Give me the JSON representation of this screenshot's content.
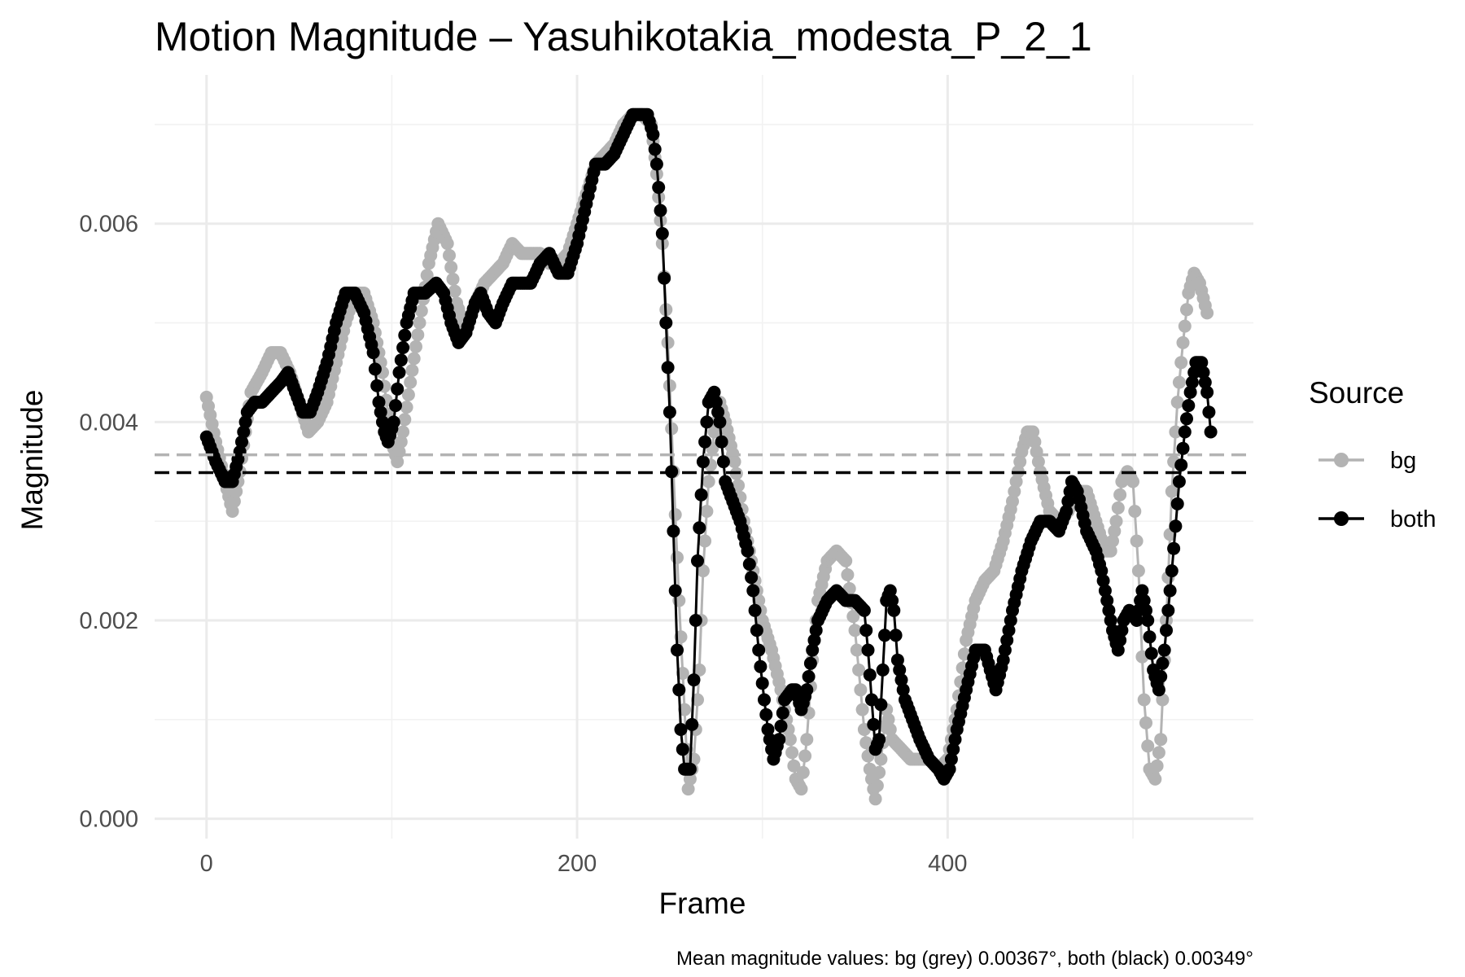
{
  "chart_data": {
    "type": "line",
    "title": "Motion Magnitude – Yasuhikotakia_modesta_P_2_1",
    "xlabel": "Frame",
    "ylabel": "Magnitude",
    "xlim": [
      -28,
      565
    ],
    "ylim": [
      -0.0002,
      0.0075
    ],
    "x_ticks": [
      0,
      200,
      400
    ],
    "x_tick_labels": [
      "0",
      "200",
      "400"
    ],
    "y_ticks": [
      0,
      0.002,
      0.004,
      0.006
    ],
    "y_tick_labels": [
      "0.000",
      "0.002",
      "0.004",
      "0.006"
    ],
    "grid": true,
    "legend_title": "Source",
    "legend_position": "right",
    "caption": "Mean magnitude values: bg (grey) 0.00367°, both (black) 0.00349°",
    "series": [
      {
        "name": "bg",
        "color": "#b3b3b3",
        "mean": 0.00367,
        "points": [
          [
            0,
            0.00425
          ],
          [
            5,
            0.0038
          ],
          [
            10,
            0.0034
          ],
          [
            14,
            0.0031
          ],
          [
            18,
            0.0035
          ],
          [
            24,
            0.0043
          ],
          [
            30,
            0.0045
          ],
          [
            35,
            0.0047
          ],
          [
            40,
            0.0047
          ],
          [
            45,
            0.0045
          ],
          [
            50,
            0.0042
          ],
          [
            55,
            0.0039
          ],
          [
            60,
            0.004
          ],
          [
            65,
            0.0042
          ],
          [
            70,
            0.0046
          ],
          [
            75,
            0.005
          ],
          [
            80,
            0.0053
          ],
          [
            85,
            0.0053
          ],
          [
            90,
            0.005
          ],
          [
            95,
            0.0045
          ],
          [
            100,
            0.0038
          ],
          [
            103,
            0.0036
          ],
          [
            106,
            0.0039
          ],
          [
            110,
            0.0044
          ],
          [
            115,
            0.005
          ],
          [
            120,
            0.0056
          ],
          [
            125,
            0.006
          ],
          [
            130,
            0.0058
          ],
          [
            135,
            0.0052
          ],
          [
            140,
            0.0049
          ],
          [
            145,
            0.0052
          ],
          [
            150,
            0.0054
          ],
          [
            155,
            0.0055
          ],
          [
            160,
            0.0056
          ],
          [
            165,
            0.0058
          ],
          [
            170,
            0.0057
          ],
          [
            175,
            0.0057
          ],
          [
            180,
            0.0057
          ],
          [
            185,
            0.0056
          ],
          [
            190,
            0.0056
          ],
          [
            195,
            0.0057
          ],
          [
            200,
            0.006
          ],
          [
            205,
            0.0063
          ],
          [
            210,
            0.0066
          ],
          [
            215,
            0.0067
          ],
          [
            220,
            0.0068
          ],
          [
            225,
            0.007
          ],
          [
            230,
            0.0071
          ],
          [
            235,
            0.0071
          ],
          [
            240,
            0.007
          ],
          [
            243,
            0.0065
          ],
          [
            246,
            0.0058
          ],
          [
            249,
            0.0048
          ],
          [
            252,
            0.0035
          ],
          [
            255,
            0.0022
          ],
          [
            258,
            0.0011
          ],
          [
            260,
            0.0003
          ],
          [
            263,
            0.0006
          ],
          [
            266,
            0.0015
          ],
          [
            268,
            0.0025
          ],
          [
            271,
            0.0034
          ],
          [
            274,
            0.0039
          ],
          [
            277,
            0.0042
          ],
          [
            280,
            0.004
          ],
          [
            285,
            0.0036
          ],
          [
            290,
            0.003
          ],
          [
            295,
            0.0025
          ],
          [
            300,
            0.002
          ],
          [
            305,
            0.0017
          ],
          [
            310,
            0.0013
          ],
          [
            315,
            0.0008
          ],
          [
            318,
            0.0004
          ],
          [
            321,
            0.0003
          ],
          [
            324,
            0.0008
          ],
          [
            327,
            0.0016
          ],
          [
            330,
            0.0022
          ],
          [
            335,
            0.0026
          ],
          [
            340,
            0.0027
          ],
          [
            345,
            0.0026
          ],
          [
            350,
            0.0019
          ],
          [
            355,
            0.0009
          ],
          [
            358,
            0.0005
          ],
          [
            361,
            0.0002
          ],
          [
            364,
            0.0006
          ],
          [
            367,
            0.0011
          ],
          [
            370,
            0.0008
          ],
          [
            375,
            0.0007
          ],
          [
            380,
            0.0006
          ],
          [
            385,
            0.0006
          ],
          [
            390,
            0.0006
          ],
          [
            395,
            0.0005
          ],
          [
            400,
            0.0006
          ],
          [
            405,
            0.0011
          ],
          [
            410,
            0.0018
          ],
          [
            415,
            0.0022
          ],
          [
            420,
            0.0024
          ],
          [
            425,
            0.0025
          ],
          [
            430,
            0.0028
          ],
          [
            435,
            0.0032
          ],
          [
            440,
            0.0037
          ],
          [
            443,
            0.0039
          ],
          [
            446,
            0.0039
          ],
          [
            450,
            0.0035
          ],
          [
            455,
            0.0031
          ],
          [
            460,
            0.003
          ],
          [
            465,
            0.0031
          ],
          [
            470,
            0.0033
          ],
          [
            475,
            0.0033
          ],
          [
            480,
            0.003
          ],
          [
            485,
            0.0027
          ],
          [
            488,
            0.0027
          ],
          [
            491,
            0.003
          ],
          [
            494,
            0.0034
          ],
          [
            497,
            0.0035
          ],
          [
            500,
            0.0034
          ],
          [
            503,
            0.0025
          ],
          [
            506,
            0.0012
          ],
          [
            509,
            0.0005
          ],
          [
            512,
            0.0004
          ],
          [
            515,
            0.0008
          ],
          [
            518,
            0.002
          ],
          [
            521,
            0.0033
          ],
          [
            524,
            0.0042
          ],
          [
            527,
            0.0048
          ],
          [
            530,
            0.0053
          ],
          [
            533,
            0.0055
          ],
          [
            536,
            0.0054
          ],
          [
            540,
            0.0051
          ]
        ]
      },
      {
        "name": "both",
        "color": "#000000",
        "mean": 0.00349,
        "points": [
          [
            0,
            0.00385
          ],
          [
            5,
            0.0036
          ],
          [
            10,
            0.0034
          ],
          [
            14,
            0.0034
          ],
          [
            18,
            0.0037
          ],
          [
            22,
            0.0041
          ],
          [
            26,
            0.0042
          ],
          [
            30,
            0.0042
          ],
          [
            35,
            0.0043
          ],
          [
            40,
            0.0044
          ],
          [
            44,
            0.0045
          ],
          [
            48,
            0.0043
          ],
          [
            52,
            0.0041
          ],
          [
            56,
            0.0041
          ],
          [
            60,
            0.0043
          ],
          [
            65,
            0.0046
          ],
          [
            70,
            0.005
          ],
          [
            75,
            0.0053
          ],
          [
            80,
            0.0053
          ],
          [
            85,
            0.0051
          ],
          [
            90,
            0.0047
          ],
          [
            93,
            0.0042
          ],
          [
            96,
            0.0039
          ],
          [
            98,
            0.0038
          ],
          [
            101,
            0.004
          ],
          [
            104,
            0.0045
          ],
          [
            108,
            0.005
          ],
          [
            112,
            0.0053
          ],
          [
            118,
            0.0053
          ],
          [
            124,
            0.0054
          ],
          [
            128,
            0.0053
          ],
          [
            132,
            0.005
          ],
          [
            136,
            0.0048
          ],
          [
            140,
            0.0049
          ],
          [
            145,
            0.0052
          ],
          [
            148,
            0.0053
          ],
          [
            152,
            0.0051
          ],
          [
            156,
            0.005
          ],
          [
            160,
            0.0052
          ],
          [
            165,
            0.0054
          ],
          [
            170,
            0.0054
          ],
          [
            175,
            0.0054
          ],
          [
            180,
            0.0056
          ],
          [
            185,
            0.0057
          ],
          [
            190,
            0.0055
          ],
          [
            195,
            0.0055
          ],
          [
            200,
            0.0058
          ],
          [
            205,
            0.0062
          ],
          [
            210,
            0.0066
          ],
          [
            215,
            0.0066
          ],
          [
            220,
            0.0067
          ],
          [
            225,
            0.0069
          ],
          [
            230,
            0.0071
          ],
          [
            235,
            0.0071
          ],
          [
            238,
            0.0071
          ],
          [
            241,
            0.0069
          ],
          [
            243,
            0.0066
          ],
          [
            246,
            0.0059
          ],
          [
            248,
            0.005
          ],
          [
            250,
            0.0041
          ],
          [
            252,
            0.0029
          ],
          [
            254,
            0.0017
          ],
          [
            256,
            0.0009
          ],
          [
            258,
            0.0005
          ],
          [
            261,
            0.0005
          ],
          [
            263,
            0.0014
          ],
          [
            265,
            0.0026
          ],
          [
            268,
            0.0036
          ],
          [
            271,
            0.0042
          ],
          [
            274,
            0.0043
          ],
          [
            277,
            0.004
          ],
          [
            280,
            0.0034
          ],
          [
            284,
            0.0032
          ],
          [
            288,
            0.003
          ],
          [
            292,
            0.0027
          ],
          [
            295,
            0.0023
          ],
          [
            298,
            0.0017
          ],
          [
            301,
            0.0012
          ],
          [
            303,
            0.0009
          ],
          [
            306,
            0.0006
          ],
          [
            309,
            0.0008
          ],
          [
            312,
            0.0012
          ],
          [
            316,
            0.0013
          ],
          [
            318,
            0.0013
          ],
          [
            321,
            0.0011
          ],
          [
            324,
            0.0013
          ],
          [
            327,
            0.0017
          ],
          [
            330,
            0.002
          ],
          [
            335,
            0.0022
          ],
          [
            340,
            0.0023
          ],
          [
            345,
            0.0022
          ],
          [
            350,
            0.0022
          ],
          [
            355,
            0.0021
          ],
          [
            357,
            0.0017
          ],
          [
            359,
            0.0012
          ],
          [
            361,
            0.0007
          ],
          [
            363,
            0.0008
          ],
          [
            365,
            0.0015
          ],
          [
            367,
            0.0022
          ],
          [
            369,
            0.0023
          ],
          [
            371,
            0.0021
          ],
          [
            373,
            0.0016
          ],
          [
            377,
            0.0012
          ],
          [
            381,
            0.001
          ],
          [
            385,
            0.0008
          ],
          [
            390,
            0.0006
          ],
          [
            395,
            0.0005
          ],
          [
            398,
            0.0004
          ],
          [
            401,
            0.0005
          ],
          [
            405,
            0.0009
          ],
          [
            410,
            0.0013
          ],
          [
            415,
            0.0017
          ],
          [
            420,
            0.0017
          ],
          [
            423,
            0.0015
          ],
          [
            426,
            0.0013
          ],
          [
            430,
            0.0016
          ],
          [
            435,
            0.0021
          ],
          [
            440,
            0.0025
          ],
          [
            445,
            0.0028
          ],
          [
            450,
            0.003
          ],
          [
            455,
            0.003
          ],
          [
            460,
            0.0029
          ],
          [
            464,
            0.0031
          ],
          [
            467,
            0.0034
          ],
          [
            470,
            0.0033
          ],
          [
            475,
            0.0029
          ],
          [
            480,
            0.0027
          ],
          [
            483,
            0.0025
          ],
          [
            486,
            0.0022
          ],
          [
            489,
            0.0019
          ],
          [
            492,
            0.0017
          ],
          [
            495,
            0.002
          ],
          [
            498,
            0.0021
          ],
          [
            502,
            0.002
          ],
          [
            505,
            0.0023
          ],
          [
            508,
            0.002
          ],
          [
            511,
            0.0015
          ],
          [
            514,
            0.0013
          ],
          [
            517,
            0.0017
          ],
          [
            521,
            0.0025
          ],
          [
            525,
            0.0034
          ],
          [
            528,
            0.0039
          ],
          [
            531,
            0.0043
          ],
          [
            534,
            0.0046
          ],
          [
            537,
            0.0046
          ],
          [
            540,
            0.0043
          ],
          [
            542,
            0.0039
          ]
        ]
      }
    ]
  }
}
